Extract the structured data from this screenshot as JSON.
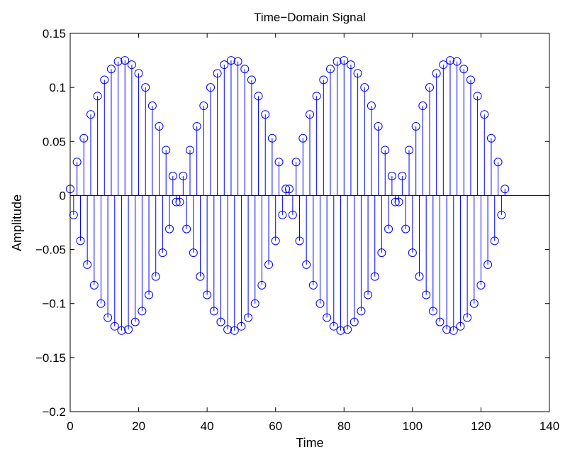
{
  "chart_data": {
    "type": "stem",
    "title": "Time−Domain Signal",
    "xlabel": "Time",
    "ylabel": "Amplitude",
    "xlim": [
      0,
      140
    ],
    "ylim": [
      -0.2,
      0.15
    ],
    "xticks": [
      0,
      20,
      40,
      60,
      80,
      100,
      120,
      140
    ],
    "xtick_labels": [
      "0",
      "20",
      "40",
      "60",
      "80",
      "100",
      "120",
      "140"
    ],
    "yticks": [
      -0.2,
      -0.15,
      -0.1,
      -0.05,
      0,
      0.05,
      0.1,
      0.15
    ],
    "ytick_labels": [
      "−0.2",
      "−0.15",
      "−0.1",
      "−0.05",
      "0",
      "0.05",
      "0.1",
      "0.15"
    ],
    "grid": false,
    "series_color": "#0000ff",
    "x": [
      0,
      1,
      2,
      3,
      4,
      5,
      6,
      7,
      8,
      9,
      10,
      11,
      12,
      13,
      14,
      15,
      16,
      17,
      18,
      19,
      20,
      21,
      22,
      23,
      24,
      25,
      26,
      27,
      28,
      29,
      30,
      31,
      32,
      33,
      34,
      35,
      36,
      37,
      38,
      39,
      40,
      41,
      42,
      43,
      44,
      45,
      46,
      47,
      48,
      49,
      50,
      51,
      52,
      53,
      54,
      55,
      56,
      57,
      58,
      59,
      60,
      61,
      62,
      63,
      64,
      65,
      66,
      67,
      68,
      69,
      70,
      71,
      72,
      73,
      74,
      75,
      76,
      77,
      78,
      79,
      80,
      81,
      82,
      83,
      84,
      85,
      86,
      87,
      88,
      89,
      90,
      91,
      92,
      93,
      94,
      95,
      96,
      97,
      98,
      99,
      100,
      101,
      102,
      103,
      104,
      105,
      106,
      107,
      108,
      109,
      110,
      111,
      112,
      113,
      114,
      115,
      116,
      117,
      118,
      119,
      120,
      121,
      122,
      123,
      124,
      125,
      126,
      127
    ],
    "y": [
      0.006,
      -0.018,
      0.031,
      -0.042,
      0.053,
      -0.064,
      0.075,
      -0.083,
      0.092,
      -0.1,
      0.107,
      -0.113,
      0.117,
      -0.121,
      0.124,
      -0.125,
      0.125,
      -0.124,
      0.121,
      -0.117,
      0.113,
      -0.107,
      0.1,
      -0.092,
      0.083,
      -0.075,
      0.064,
      -0.053,
      0.042,
      -0.031,
      0.018,
      -0.006,
      -0.006,
      0.018,
      -0.031,
      0.042,
      -0.053,
      0.064,
      -0.075,
      0.083,
      -0.092,
      0.1,
      -0.107,
      0.113,
      -0.117,
      0.121,
      -0.124,
      0.125,
      -0.125,
      0.124,
      -0.121,
      0.117,
      -0.113,
      0.107,
      -0.1,
      0.092,
      -0.083,
      0.075,
      -0.064,
      0.053,
      -0.042,
      0.031,
      -0.018,
      0.006,
      0.006,
      -0.018,
      0.031,
      -0.042,
      0.053,
      -0.064,
      0.075,
      -0.083,
      0.092,
      -0.1,
      0.107,
      -0.113,
      0.117,
      -0.121,
      0.124,
      -0.125,
      0.125,
      -0.124,
      0.121,
      -0.117,
      0.113,
      -0.107,
      0.1,
      -0.092,
      0.083,
      -0.075,
      0.064,
      -0.053,
      0.042,
      -0.031,
      0.018,
      -0.006,
      -0.006,
      0.018,
      -0.031,
      0.042,
      -0.053,
      0.064,
      -0.075,
      0.083,
      -0.092,
      0.1,
      -0.107,
      0.113,
      -0.117,
      0.121,
      -0.124,
      0.125,
      -0.125,
      0.124,
      -0.121,
      0.117,
      -0.113,
      0.107,
      -0.1,
      0.092,
      -0.083,
      0.075,
      -0.064,
      0.053,
      -0.042,
      0.031,
      -0.018,
      0.006
    ]
  }
}
